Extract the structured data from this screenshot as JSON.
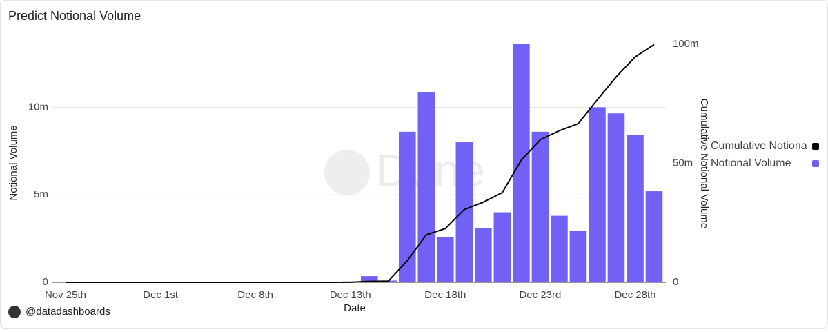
{
  "chart_data": {
    "type": "bar",
    "title": "Predict Notional Volume",
    "x_label": "Date",
    "y_label": "Notional Volume",
    "y2_label": "Cumulative Notional Volume",
    "watermark": "Dune",
    "footer": "@datadashboards",
    "categories": [
      "Nov 25th",
      null,
      null,
      null,
      null,
      "Dec 1st",
      null,
      null,
      null,
      null,
      "Dec 8th",
      null,
      null,
      null,
      null,
      "Dec 13th",
      null,
      null,
      null,
      null,
      "Dec 18th",
      null,
      null,
      null,
      null,
      "Dec 23rd",
      null,
      null,
      null,
      null,
      "Dec 28th",
      null
    ],
    "series": [
      {
        "name": "Cumulative Notional Volume",
        "type": "line",
        "axis": "y2",
        "color": "#000000",
        "values": [
          0,
          0,
          0,
          0,
          0,
          0,
          0,
          0,
          0,
          0,
          0,
          0,
          0,
          0,
          0,
          0.05,
          0.4,
          0.5,
          9.1,
          19.95,
          22.55,
          30.55,
          33.65,
          37.65,
          51.25,
          59.85,
          63.65,
          66.6,
          76.6,
          86.25,
          94.65,
          99.85
        ]
      },
      {
        "name": "Notional Volume",
        "type": "bar",
        "color": "#7161f5",
        "values": [
          0,
          0,
          0,
          0,
          0,
          0,
          0,
          0,
          0,
          0,
          0,
          0,
          0,
          0,
          0,
          0.05,
          0.35,
          0.1,
          8.6,
          10.85,
          2.6,
          8.0,
          3.1,
          4.0,
          13.6,
          8.6,
          3.8,
          2.95,
          10.0,
          9.65,
          8.4,
          5.2
        ]
      }
    ],
    "ylim": [
      0,
      13.6
    ],
    "yticks": [
      0,
      {
        "value": 5,
        "label": "5m"
      },
      {
        "value": 10,
        "label": "10m"
      }
    ],
    "y2lim": [
      0,
      100
    ],
    "y2ticks": [
      0,
      {
        "value": 50,
        "label": "50m"
      },
      {
        "value": 100,
        "label": "100m"
      }
    ],
    "grid": true,
    "legend": "right"
  }
}
